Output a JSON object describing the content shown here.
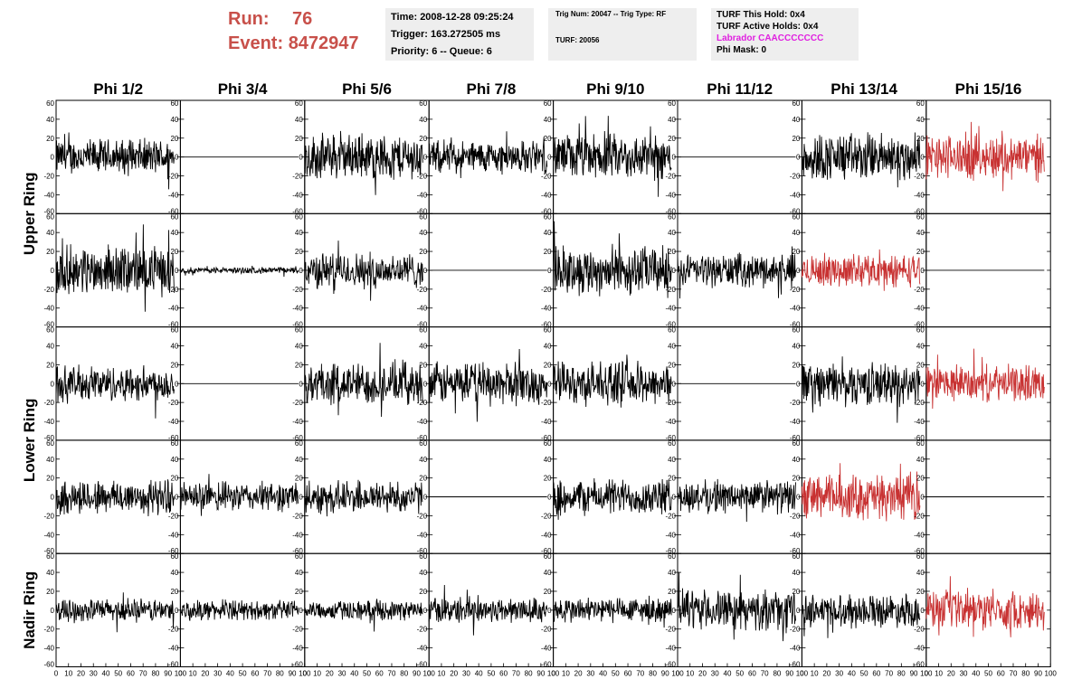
{
  "header": {
    "run_label": "Run:",
    "run_value": "76",
    "event_label": "Event:",
    "event_value": "8472947",
    "colors": {
      "run_text": "#c8504a"
    }
  },
  "info_time": {
    "time": "Time: 2008-12-28 09:25:24",
    "trigger": "Trigger: 163.272505 ms",
    "priority": "Priority: 6 -- Queue: 6"
  },
  "info_trig": {
    "trig": "Trig Num: 20047 -- Trig Type: RF",
    "turf": "TURF: 20056"
  },
  "info_turf": {
    "this_hold": "TURF This Hold: 0x4",
    "active_holds": "TURF Active Holds: 0x4",
    "labrador": "Labrador CAACCCCCCC",
    "phi_mask": "Phi Mask: 0",
    "colors": {
      "labrador": "#e020e0"
    }
  },
  "chart_data": {
    "type": "line",
    "title": "",
    "columns": [
      "Phi 1/2",
      "Phi 3/4",
      "Phi 5/6",
      "Phi 7/8",
      "Phi 9/10",
      "Phi 11/12",
      "Phi 13/14",
      "Phi 15/16"
    ],
    "ring_labels": [
      "Upper Ring",
      "Lower Ring",
      "Nadir Ring"
    ],
    "ylim": [
      -60,
      60
    ],
    "yticks": [
      -60,
      -40,
      -20,
      0,
      20,
      40,
      60
    ],
    "xlim": [
      0,
      100
    ],
    "xticks": [
      0,
      10,
      20,
      30,
      40,
      50,
      60,
      70,
      80,
      90,
      100
    ],
    "grid": false,
    "colors": {
      "normal": "#000000",
      "highlight": "#c83232"
    },
    "panel_rows": [
      {
        "ring": "Upper Ring",
        "amplitude": [
          22,
          0,
          28,
          20,
          28,
          0,
          30,
          28
        ],
        "highlight": [
          false,
          false,
          false,
          false,
          false,
          false,
          false,
          true
        ]
      },
      {
        "ring": "Upper Ring",
        "amplitude": [
          30,
          4,
          22,
          0,
          30,
          20,
          20,
          0
        ],
        "highlight": [
          false,
          false,
          false,
          false,
          false,
          false,
          true,
          false
        ]
      },
      {
        "ring": "Lower Ring",
        "amplitude": [
          22,
          0,
          26,
          26,
          26,
          0,
          26,
          22
        ],
        "highlight": [
          false,
          false,
          false,
          false,
          false,
          false,
          false,
          true
        ]
      },
      {
        "ring": "Lower Ring",
        "amplitude": [
          22,
          18,
          20,
          0,
          22,
          20,
          28,
          0
        ],
        "highlight": [
          false,
          false,
          false,
          false,
          false,
          false,
          true,
          false
        ]
      },
      {
        "ring": "Nadir Ring",
        "amplitude": [
          14,
          12,
          12,
          16,
          16,
          24,
          20,
          24
        ],
        "highlight": [
          false,
          false,
          false,
          false,
          false,
          false,
          false,
          true
        ]
      }
    ]
  }
}
